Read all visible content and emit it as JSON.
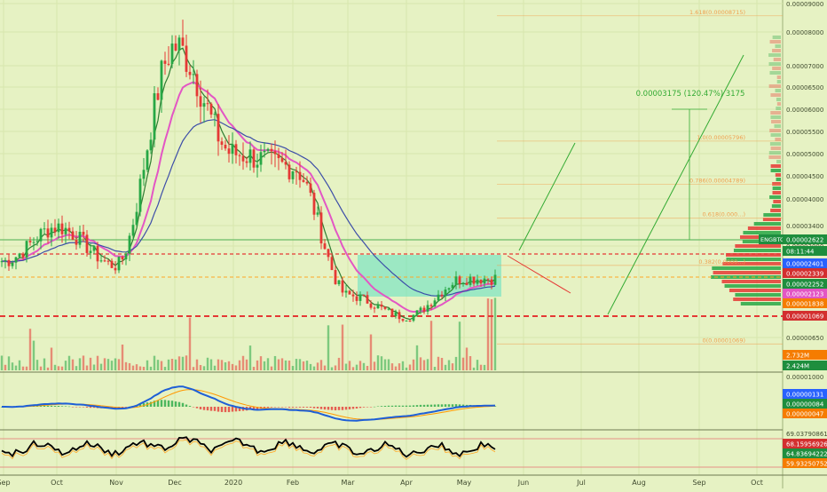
{
  "colors": {
    "background": "#e6f2c3",
    "up": "#27a745",
    "down": "#e53935",
    "ema_fast": "#2e7d32",
    "ema_mid": "#e356c4",
    "ema_slow": "#3c4da8",
    "zone": "#5fe0c2",
    "dashed": "#e53935",
    "fib": "#f0a050",
    "projection": "#33aa33",
    "macd": "#1e5fd6",
    "signal": "#ff9800",
    "rsi": "#000000",
    "label_blue": "#2962ff",
    "label_green": "#1e8e3e",
    "label_red": "#d32f2f",
    "label_orange": "#f57c00",
    "label_pink": "#e356c4"
  },
  "header": {
    "symbol": "ENGBTC",
    "countdown": "08:11:44"
  },
  "x_axis": {
    "labels": [
      "Sep",
      "Oct",
      "Nov",
      "Dec",
      "2020",
      "Feb",
      "Mar",
      "Apr",
      "May",
      "Jun",
      "Jul",
      "Aug",
      "Sep",
      "Oct"
    ]
  },
  "y_axis": {
    "ticks": [
      "0.00009000",
      "0.00008000",
      "0.00007000",
      "0.00006500",
      "0.00006000",
      "0.00005500",
      "0.00005000",
      "0.00004500",
      "0.00004000",
      "0.00003400",
      "0.00003000",
      "0.00000650"
    ]
  },
  "price_labels": [
    {
      "text": "0.00002622",
      "kind": "green"
    },
    {
      "text": "08:11:44",
      "kind": "green"
    },
    {
      "text": "0.00002401",
      "kind": "blue"
    },
    {
      "text": "0.00002339",
      "kind": "red"
    },
    {
      "text": "0.00002252",
      "kind": "green"
    },
    {
      "text": "0.00002123",
      "kind": "pink"
    },
    {
      "text": "0.00001838",
      "kind": "orange"
    },
    {
      "text": "0.00001069",
      "kind": "red"
    }
  ],
  "volume_labels": [
    {
      "text": "2.732M",
      "kind": "orange"
    },
    {
      "text": "2.424M",
      "kind": "green"
    }
  ],
  "macd": {
    "axis_top": "0.00001000",
    "labels": [
      {
        "text": "0.00000131",
        "kind": "blue"
      },
      {
        "text": "0.00000084",
        "kind": "green"
      },
      {
        "text": "0.00000047",
        "kind": "orange"
      }
    ]
  },
  "rsi": {
    "axis_top": "69.03790861",
    "labels": [
      {
        "text": "68.15956926",
        "kind": "red"
      },
      {
        "text": "64.83694222",
        "kind": "green"
      },
      {
        "text": "59.93250752",
        "kind": "orange"
      }
    ]
  },
  "fib_levels": [
    {
      "label": "1.618(0.00008715)",
      "price": 8.715
    },
    {
      "label": "1.0(0.00005796)",
      "price": 5.796
    },
    {
      "label": "0.786(0.00004789)",
      "price": 4.789
    },
    {
      "label": "0.618(0.000...)",
      "price": 4.0
    },
    {
      "label": "0.382(0.0000...)",
      "price": 2.9
    },
    {
      "label": "0(0.00001069)",
      "price": 1.069
    }
  ],
  "annotation": {
    "text": "0.00003175 (120.47%) 3175"
  },
  "chart_data": {
    "type": "line",
    "series": [
      {
        "x": [
          "Sep",
          "Oct",
          "Nov",
          "Dec",
          "2020",
          "Feb",
          "Mar",
          "Apr",
          "May"
        ],
        "y": [
          3.0,
          3.8,
          2.9,
          8.0,
          5.5,
          5.2,
          2.2,
          1.7,
          2.6
        ]
      }
    ],
    "ylim": [
      0.6,
      9.0
    ]
  }
}
